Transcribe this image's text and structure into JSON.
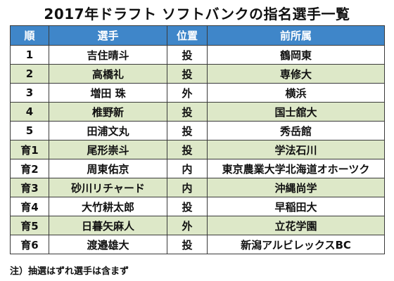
{
  "title": "2017年ドラフト ソフトバンクの指名選手一覧",
  "headers": {
    "order": "順",
    "player": "選手",
    "position": "位置",
    "previous": "前所属"
  },
  "rows": [
    {
      "order": "1",
      "player": "吉住晴斗",
      "position": "投",
      "previous": "鶴岡東"
    },
    {
      "order": "2",
      "player": "高橋礼",
      "position": "投",
      "previous": "専修大"
    },
    {
      "order": "3",
      "player": "増田 珠",
      "position": "外",
      "previous": "横浜"
    },
    {
      "order": "4",
      "player": "椎野新",
      "position": "投",
      "previous": "国士舘大"
    },
    {
      "order": "5",
      "player": "田浦文丸",
      "position": "投",
      "previous": "秀岳館"
    },
    {
      "order": "育1",
      "player": "尾形崇斗",
      "position": "投",
      "previous": "学法石川"
    },
    {
      "order": "育2",
      "player": "周東佑京",
      "position": "内",
      "previous": "東京農業大学北海道オホーツク"
    },
    {
      "order": "育3",
      "player": "砂川リチャード",
      "position": "内",
      "previous": "沖縄尚学"
    },
    {
      "order": "育4",
      "player": "大竹耕太郎",
      "position": "投",
      "previous": "早稲田大"
    },
    {
      "order": "育5",
      "player": "日暮矢麻人",
      "position": "外",
      "previous": "立花学園"
    },
    {
      "order": "育6",
      "player": "渡邉雄大",
      "position": "投",
      "previous": "新潟アルビレックスBC"
    }
  ],
  "note": "注）抽選はずれ選手は含まず",
  "colors": {
    "header_bg": "#3f86c9",
    "stripe_bg": "#dde8c8",
    "border": "#3a3a3a"
  }
}
